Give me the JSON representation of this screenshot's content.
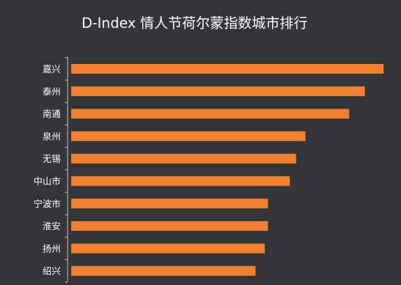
{
  "chart_data": {
    "type": "bar",
    "orientation": "horizontal",
    "title": "D-Index 情人节荷尔蒙指数城市排行",
    "categories": [
      "嘉兴",
      "泰州",
      "南通",
      "泉州",
      "无锡",
      "中山市",
      "宁波市",
      "淮安",
      "扬州",
      "绍兴"
    ],
    "values": [
      100,
      94,
      89,
      75,
      72,
      70,
      63,
      63,
      62,
      59
    ],
    "xlim": [
      0,
      100
    ],
    "grid": false,
    "xaxis_visible": false
  },
  "colors": {
    "background": "#333539",
    "bar": "#f08030",
    "title": "#ffffff",
    "label": "#ffffff",
    "axis": "#cccccc"
  }
}
